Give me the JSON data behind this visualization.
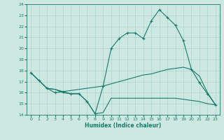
{
  "xlabel": "Humidex (Indice chaleur)",
  "bg_color": "#cce8e0",
  "line_color": "#1a7a6e",
  "grid_color": "#aad4cc",
  "xlim": [
    -0.5,
    23.5
  ],
  "ylim": [
    14,
    24
  ],
  "xticks": [
    0,
    1,
    2,
    3,
    4,
    5,
    6,
    7,
    8,
    9,
    10,
    11,
    12,
    13,
    14,
    15,
    16,
    17,
    18,
    19,
    20,
    21,
    22,
    23
  ],
  "yticks": [
    14,
    15,
    16,
    17,
    18,
    19,
    20,
    21,
    22,
    23,
    24
  ],
  "line1_x": [
    0,
    1,
    2,
    3,
    4,
    5,
    6,
    7,
    8,
    9,
    10,
    11,
    12,
    13,
    14,
    15,
    16,
    17,
    18,
    19,
    20,
    21,
    22,
    23
  ],
  "line1_y": [
    17.8,
    17.1,
    16.4,
    16.0,
    16.1,
    15.9,
    15.9,
    15.2,
    14.1,
    16.6,
    20.0,
    20.9,
    21.4,
    21.4,
    20.9,
    22.5,
    23.5,
    22.8,
    22.1,
    20.7,
    18.1,
    16.9,
    15.9,
    14.9
  ],
  "line2_x": [
    0,
    1,
    2,
    3,
    4,
    5,
    6,
    7,
    8,
    9,
    10,
    11,
    12,
    13,
    14,
    15,
    16,
    17,
    18,
    19,
    20,
    21,
    22,
    23
  ],
  "line2_y": [
    17.8,
    17.1,
    16.4,
    16.3,
    16.1,
    16.2,
    16.3,
    16.4,
    16.5,
    16.6,
    16.8,
    17.0,
    17.2,
    17.4,
    17.6,
    17.7,
    17.9,
    18.1,
    18.2,
    18.3,
    18.1,
    17.5,
    16.0,
    14.9
  ],
  "line3_x": [
    0,
    1,
    2,
    3,
    4,
    5,
    6,
    7,
    8,
    9,
    10,
    11,
    12,
    13,
    14,
    15,
    16,
    17,
    18,
    19,
    20,
    21,
    22,
    23
  ],
  "line3_y": [
    17.8,
    17.1,
    16.4,
    16.3,
    16.0,
    15.9,
    15.9,
    15.2,
    14.1,
    14.2,
    15.5,
    15.5,
    15.5,
    15.5,
    15.5,
    15.5,
    15.5,
    15.5,
    15.5,
    15.4,
    15.3,
    15.2,
    15.0,
    14.9
  ]
}
